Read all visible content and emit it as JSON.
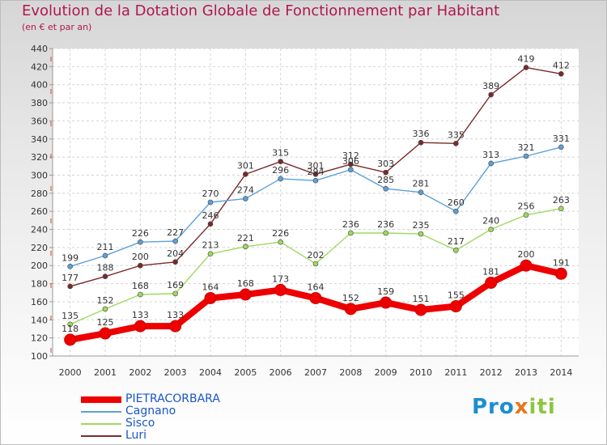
{
  "title": "Evolution de la Dotation Globale de Fonctionnement par Habitant",
  "subtitle": "(en € et par an)",
  "logo": {
    "part1": "Pro",
    "part2": "x",
    "part3": "iti"
  },
  "colors": {
    "title": "#b01850",
    "legend_text": "#1a56c8",
    "pietracorbara": "#ee0000",
    "cagnano": "#5da0d8",
    "sisco": "#a0d860",
    "luri": "#7a2a2a"
  },
  "chart_data": {
    "type": "line",
    "x": [
      2000,
      2001,
      2002,
      2003,
      2004,
      2005,
      2006,
      2007,
      2008,
      2009,
      2010,
      2011,
      2012,
      2013,
      2014
    ],
    "ylim": [
      100,
      440
    ],
    "yticks": [
      100,
      120,
      140,
      160,
      180,
      200,
      220,
      240,
      260,
      280,
      300,
      320,
      340,
      360,
      380,
      400,
      420,
      440
    ],
    "grid": true,
    "legend_position": "bottom-left",
    "series": [
      {
        "name": "PIETRACORBARA",
        "color": "#ee0000",
        "values": [
          118,
          125,
          133,
          133,
          164,
          168,
          173,
          164,
          152,
          159,
          151,
          155,
          181,
          200,
          191
        ]
      },
      {
        "name": "Cagnano",
        "color": "#5da0d8",
        "values": [
          199,
          211,
          226,
          227,
          270,
          274,
          296,
          294,
          306,
          285,
          281,
          260,
          313,
          321,
          331
        ]
      },
      {
        "name": "Sisco",
        "color": "#a0d860",
        "values": [
          135,
          152,
          168,
          169,
          213,
          221,
          226,
          202,
          236,
          236,
          235,
          217,
          240,
          256,
          263
        ]
      },
      {
        "name": "Luri",
        "color": "#7a2a2a",
        "values": [
          177,
          188,
          200,
          204,
          246,
          301,
          315,
          301,
          312,
          303,
          336,
          335,
          389,
          419,
          412
        ]
      }
    ]
  }
}
